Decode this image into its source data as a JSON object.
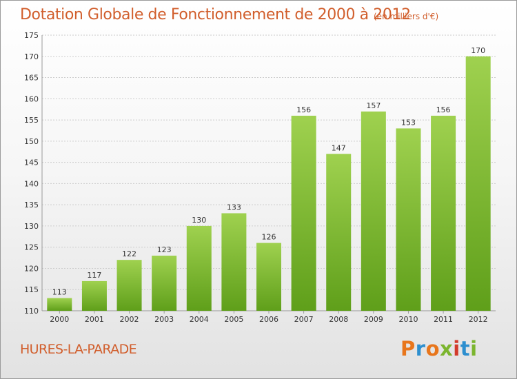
{
  "header": {
    "title": "Dotation Globale de Fonctionnement de 2000 à 2012",
    "subtitle": "(en milliers d'€)"
  },
  "footer": {
    "place": "HURES-LA-PARADE",
    "logo": [
      "P",
      "r",
      "o",
      "x",
      "i",
      "t",
      "i"
    ]
  },
  "colors": {
    "title": "#d15e2c",
    "bar_top": "#9fd14f",
    "bar_bottom": "#5f9f1a",
    "grid": "#cccccc",
    "logo": [
      "#e8761c",
      "#2d8fcf",
      "#e8761c",
      "#7bb52e",
      "#d23b2b",
      "#2d8fcf",
      "#7bb52e"
    ]
  },
  "chart_data": {
    "type": "bar",
    "title": "Dotation Globale de Fonctionnement de 2000 à 2012",
    "subtitle": "(en milliers d'€)",
    "categories": [
      "2000",
      "2001",
      "2002",
      "2003",
      "2004",
      "2005",
      "2006",
      "2007",
      "2008",
      "2009",
      "2010",
      "2011",
      "2012"
    ],
    "values": [
      113,
      117,
      122,
      123,
      130,
      133,
      126,
      156,
      147,
      157,
      153,
      156,
      170
    ],
    "data_labels": [
      "113",
      "117",
      "122",
      "123",
      "130",
      "133",
      "126",
      "156",
      "147",
      "157",
      "153",
      "156",
      "170"
    ],
    "ylim": [
      110,
      175
    ],
    "yticks": [
      110,
      115,
      120,
      125,
      130,
      135,
      140,
      145,
      150,
      155,
      160,
      165,
      170,
      175
    ],
    "ytick_labels": [
      "110",
      "115",
      "120",
      "125",
      "130",
      "135",
      "140",
      "145",
      "150",
      "155",
      "160",
      "165",
      "170",
      "175"
    ],
    "xlabel": "",
    "ylabel": "",
    "grid": true,
    "legend": "none"
  }
}
